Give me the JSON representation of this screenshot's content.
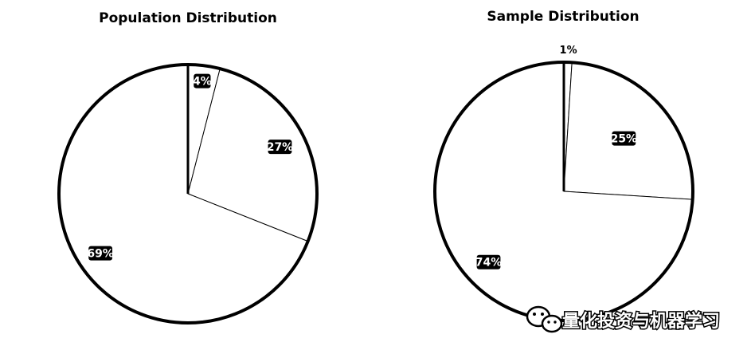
{
  "chart_data": [
    {
      "type": "pie",
      "title": "Population Distribution",
      "slices": [
        {
          "value": 4,
          "label": "4%"
        },
        {
          "value": 27,
          "label": "27%"
        },
        {
          "value": 69,
          "label": "69%"
        }
      ]
    },
    {
      "type": "pie",
      "title": "Sample Distribution",
      "slices": [
        {
          "value": 1,
          "label": "1%"
        },
        {
          "value": 25,
          "label": "25%"
        },
        {
          "value": 74,
          "label": "74%"
        }
      ]
    }
  ],
  "watermark": {
    "icon": "wechat-icon",
    "text": "量化投资与机器学习"
  }
}
